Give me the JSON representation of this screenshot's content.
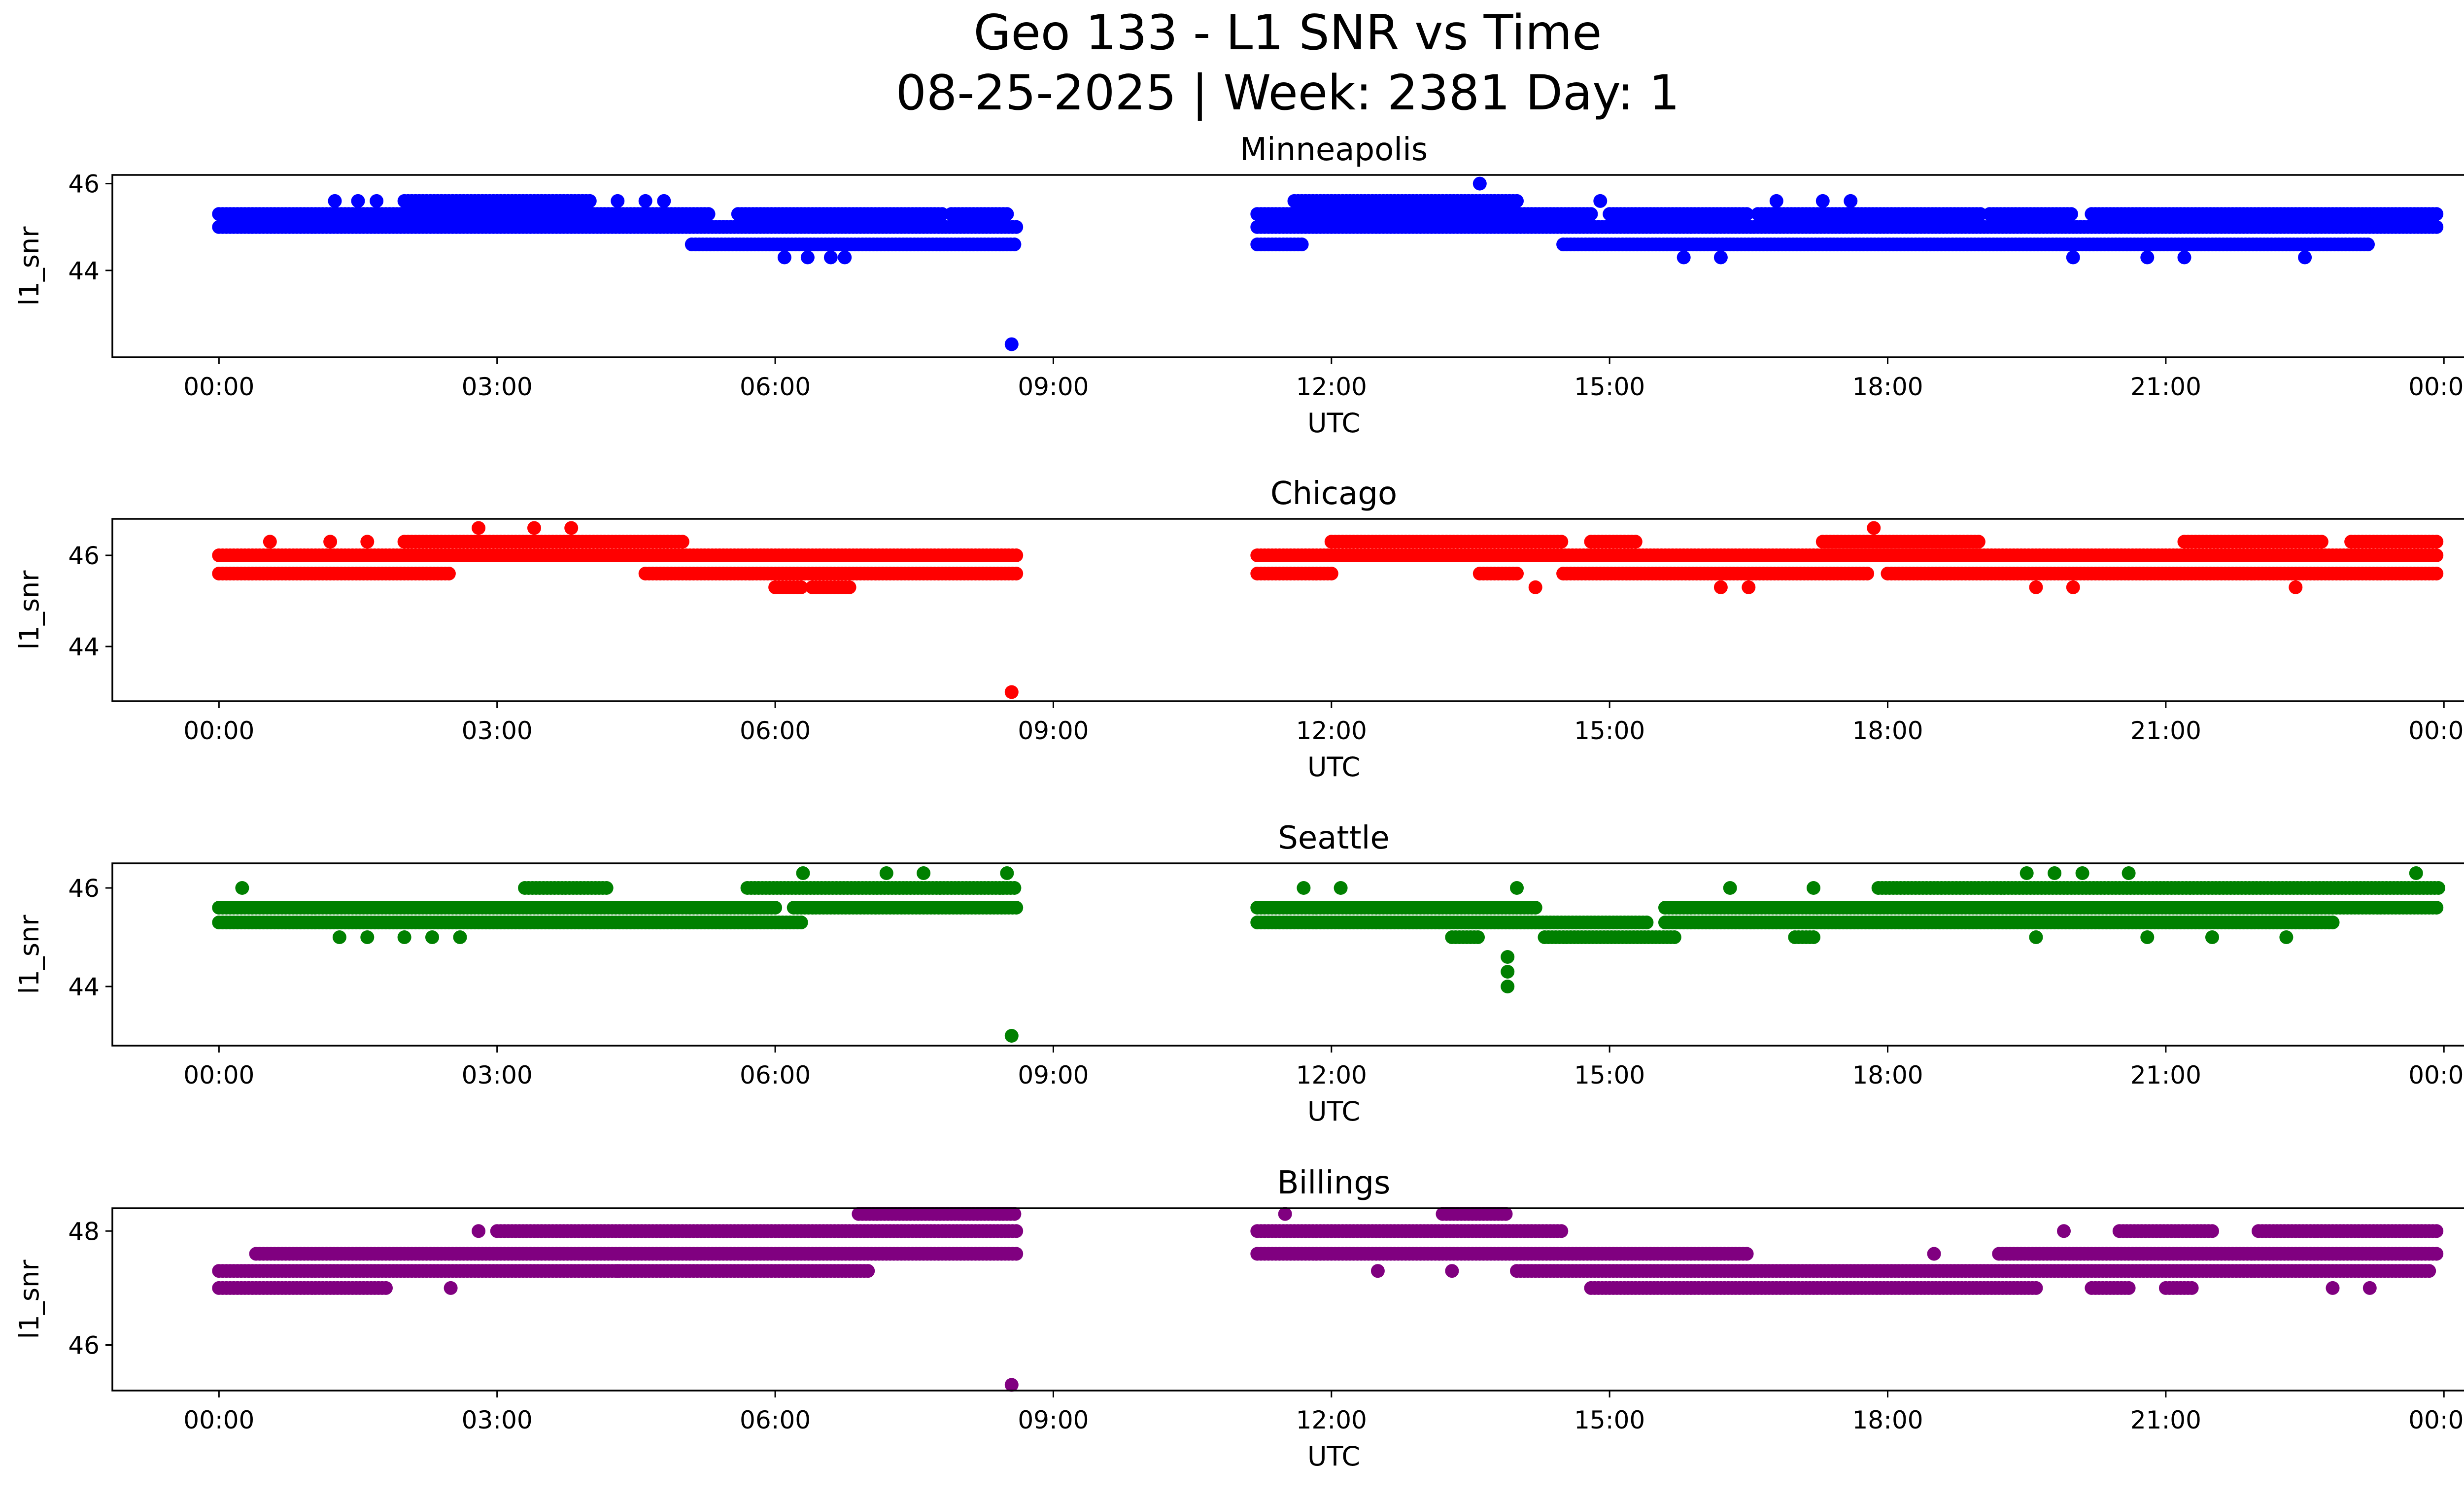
{
  "chart_data": {
    "type": "scatter",
    "title": "Geo 133 - L1 SNR vs Time",
    "subtitle": "08-25-2025 | Week: 2381 Day: 1",
    "x_ticks": [
      "00:00",
      "03:00",
      "06:00",
      "09:00",
      "12:00",
      "15:00",
      "18:00",
      "21:00",
      "00:00"
    ],
    "x_tick_hours": [
      0,
      3,
      6,
      9,
      12,
      15,
      18,
      21,
      24
    ],
    "xlim_hours": [
      -1.15,
      25.2
    ],
    "xlabel": "UTC",
    "ylabel": "l1_snr",
    "panels": [
      {
        "name": "Minneapolis",
        "color": "#0000ff",
        "ylim": [
          42.0,
          46.2
        ],
        "y_ticks": [
          44,
          46
        ],
        "levels": [
          {
            "y": 45.0,
            "runs": [
              [
                0.0,
                8.6
              ],
              [
                11.2,
                23.95
              ]
            ]
          },
          {
            "y": 45.3,
            "runs": [
              [
                0.0,
                5.3
              ],
              [
                5.6,
                7.8
              ],
              [
                7.9,
                8.5
              ],
              [
                11.2,
                14.8
              ],
              [
                15.0,
                16.5
              ],
              [
                16.6,
                19.0
              ],
              [
                19.1,
                20.0
              ],
              [
                20.2,
                23.95
              ]
            ]
          },
          {
            "y": 44.6,
            "runs": [
              [
                5.1,
                8.6
              ],
              [
                11.2,
                11.7
              ],
              [
                14.5,
                23.2
              ]
            ]
          },
          {
            "y": 45.6,
            "runs": [
              [
                2.0,
                4.0
              ],
              [
                11.6,
                14.0
              ]
            ]
          }
        ],
        "points": [
          [
            1.25,
            45.6
          ],
          [
            1.5,
            45.6
          ],
          [
            1.7,
            45.6
          ],
          [
            4.3,
            45.6
          ],
          [
            4.6,
            45.6
          ],
          [
            4.8,
            45.6
          ],
          [
            6.1,
            44.3
          ],
          [
            6.35,
            44.3
          ],
          [
            6.6,
            44.3
          ],
          [
            6.75,
            44.3
          ],
          [
            8.55,
            42.3
          ],
          [
            13.6,
            46.0
          ],
          [
            14.9,
            45.6
          ],
          [
            15.8,
            44.3
          ],
          [
            16.2,
            44.3
          ],
          [
            16.8,
            45.6
          ],
          [
            17.3,
            45.6
          ],
          [
            17.6,
            45.6
          ],
          [
            20.0,
            44.3
          ],
          [
            20.8,
            44.3
          ],
          [
            21.2,
            44.3
          ],
          [
            22.5,
            44.3
          ]
        ]
      },
      {
        "name": "Chicago",
        "color": "#ff0000",
        "ylim": [
          42.8,
          46.8
        ],
        "y_ticks": [
          44,
          46
        ],
        "levels": [
          {
            "y": 46.0,
            "runs": [
              [
                0.0,
                8.6
              ],
              [
                11.2,
                23.95
              ]
            ]
          },
          {
            "y": 46.3,
            "runs": [
              [
                2.0,
                5.0
              ],
              [
                12.0,
                14.5
              ],
              [
                14.8,
                15.3
              ],
              [
                17.3,
                19.0
              ],
              [
                21.2,
                22.7
              ],
              [
                23.0,
                23.95
              ]
            ]
          },
          {
            "y": 45.6,
            "runs": [
              [
                0.0,
                2.5
              ],
              [
                4.6,
                8.6
              ],
              [
                11.2,
                12.0
              ],
              [
                13.6,
                14.0
              ],
              [
                14.5,
                17.8
              ],
              [
                18.0,
                23.95
              ]
            ]
          },
          {
            "y": 45.3,
            "runs": [
              [
                6.0,
                6.3
              ],
              [
                6.4,
                6.8
              ]
            ]
          }
        ],
        "points": [
          [
            0.55,
            46.3
          ],
          [
            1.2,
            46.3
          ],
          [
            1.6,
            46.3
          ],
          [
            2.8,
            46.6
          ],
          [
            3.4,
            46.6
          ],
          [
            3.8,
            46.6
          ],
          [
            8.55,
            43.0
          ],
          [
            14.2,
            45.3
          ],
          [
            16.2,
            45.3
          ],
          [
            16.5,
            45.3
          ],
          [
            17.85,
            46.6
          ],
          [
            19.6,
            45.3
          ],
          [
            20.0,
            45.3
          ],
          [
            22.4,
            45.3
          ]
        ]
      },
      {
        "name": "Seattle",
        "color": "#008000",
        "ylim": [
          42.8,
          46.5
        ],
        "y_ticks": [
          44,
          46
        ],
        "levels": [
          {
            "y": 45.6,
            "runs": [
              [
                0.0,
                6.0
              ],
              [
                6.2,
                8.6
              ],
              [
                11.2,
                14.2
              ],
              [
                15.6,
                23.95
              ]
            ]
          },
          {
            "y": 45.3,
            "runs": [
              [
                0.0,
                6.3
              ],
              [
                11.2,
                15.4
              ],
              [
                15.6,
                22.8
              ]
            ]
          },
          {
            "y": 46.0,
            "runs": [
              [
                3.3,
                4.2
              ],
              [
                5.7,
                8.6
              ],
              [
                17.9,
                23.95
              ]
            ]
          },
          {
            "y": 45.0,
            "runs": [
              [
                13.3,
                13.6
              ],
              [
                14.3,
                15.7
              ],
              [
                17.0,
                17.2
              ]
            ]
          }
        ],
        "points": [
          [
            0.25,
            46.0
          ],
          [
            1.3,
            45.0
          ],
          [
            1.6,
            45.0
          ],
          [
            2.0,
            45.0
          ],
          [
            2.3,
            45.0
          ],
          [
            2.6,
            45.0
          ],
          [
            6.3,
            46.3
          ],
          [
            7.2,
            46.3
          ],
          [
            7.6,
            46.3
          ],
          [
            8.5,
            46.3
          ],
          [
            8.55,
            43.0
          ],
          [
            11.7,
            46.0
          ],
          [
            12.1,
            46.0
          ],
          [
            13.9,
            44.6
          ],
          [
            13.9,
            44.3
          ],
          [
            13.9,
            44.0
          ],
          [
            14.0,
            46.0
          ],
          [
            16.3,
            46.0
          ],
          [
            17.2,
            46.0
          ],
          [
            19.5,
            46.3
          ],
          [
            19.8,
            46.3
          ],
          [
            20.1,
            46.3
          ],
          [
            20.6,
            46.3
          ],
          [
            23.7,
            46.3
          ],
          [
            19.6,
            45.0
          ],
          [
            20.8,
            45.0
          ],
          [
            21.5,
            45.0
          ],
          [
            22.3,
            45.0
          ]
        ]
      },
      {
        "name": "Billings",
        "color": "#800080",
        "ylim": [
          45.2,
          48.4
        ],
        "y_ticks": [
          46,
          48
        ],
        "levels": [
          {
            "y": 47.6,
            "runs": [
              [
                0.4,
                8.6
              ],
              [
                11.2,
                16.5
              ],
              [
                19.2,
                23.95
              ]
            ]
          },
          {
            "y": 47.3,
            "runs": [
              [
                0.0,
                7.0
              ],
              [
                14.0,
                23.85
              ]
            ]
          },
          {
            "y": 47.0,
            "runs": [
              [
                0.0,
                1.8
              ],
              [
                14.8,
                19.6
              ],
              [
                20.2,
                20.6
              ],
              [
                21.0,
                21.3
              ]
            ]
          },
          {
            "y": 48.0,
            "runs": [
              [
                3.0,
                8.6
              ],
              [
                11.2,
                14.5
              ],
              [
                20.5,
                21.5
              ],
              [
                22.0,
                23.95
              ]
            ]
          },
          {
            "y": 48.3,
            "runs": [
              [
                6.9,
                8.6
              ],
              [
                13.2,
                13.9
              ]
            ]
          }
        ],
        "points": [
          [
            2.5,
            47.0
          ],
          [
            2.8,
            48.0
          ],
          [
            4.3,
            47.3
          ],
          [
            11.5,
            48.3
          ],
          [
            12.5,
            47.3
          ],
          [
            13.3,
            47.3
          ],
          [
            8.55,
            45.3
          ],
          [
            18.5,
            47.6
          ],
          [
            19.9,
            48.0
          ],
          [
            22.8,
            47.0
          ],
          [
            23.2,
            47.0
          ]
        ]
      }
    ]
  }
}
